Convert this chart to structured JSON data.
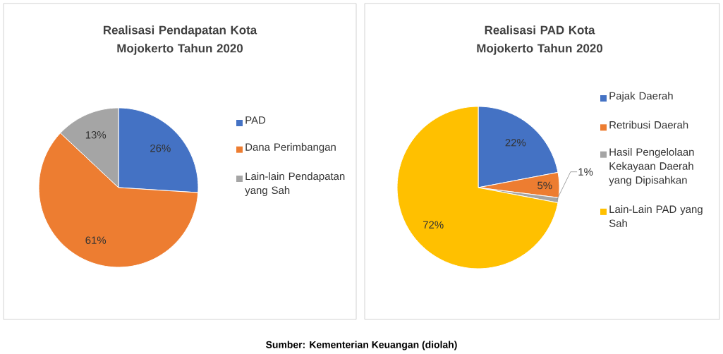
{
  "chart_data": [
    {
      "type": "pie",
      "title": "Realisasi Pendapatan Kota Mojokerto Tahun 2020",
      "categories": [
        "PAD",
        "Dana Perimbangan",
        "Lain-lain Pendapatan yang Sah"
      ],
      "values": [
        26,
        61,
        13
      ],
      "colors": [
        "#4472c4",
        "#ed7d31",
        "#a5a5a5"
      ],
      "value_labels": [
        "26%",
        "61%",
        "13%"
      ],
      "legend": "right",
      "annotations": [
        "Sumber: Kementerian Keuangan (diolah)"
      ]
    },
    {
      "type": "pie",
      "title": "Realisasi PAD Kota Mojokerto Tahun 2020",
      "categories": [
        "Pajak Daerah",
        "Retribusi Daerah",
        "Hasil Pengelolaan Kekayaan Daerah yang Dipisahkan",
        "Lain-Lain PAD yang Sah"
      ],
      "values": [
        22,
        5,
        1,
        72
      ],
      "colors": [
        "#4472c4",
        "#ed7d31",
        "#a5a5a5",
        "#ffc000"
      ],
      "value_labels": [
        "22%",
        "5%",
        "1%",
        "72%"
      ],
      "legend": "right"
    }
  ]
}
